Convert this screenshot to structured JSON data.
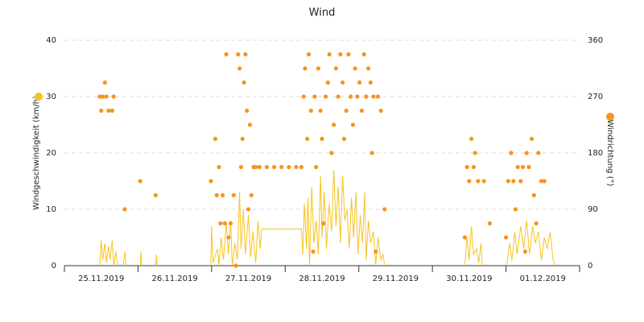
{
  "chart_data": {
    "type": "line",
    "title": "Wind",
    "xlim": [
      0,
      7
    ],
    "xticks": [
      {
        "value": 0.5,
        "label": "25.11.2019"
      },
      {
        "value": 1.5,
        "label": "26.11.2019"
      },
      {
        "value": 2.5,
        "label": "27.11.2019"
      },
      {
        "value": 3.5,
        "label": "28.11.2019"
      },
      {
        "value": 4.5,
        "label": "29.11.2019"
      },
      {
        "value": 5.5,
        "label": "30.11.2019"
      },
      {
        "value": 6.5,
        "label": "01.12.2019"
      }
    ],
    "ylim": [
      0,
      40
    ],
    "yticks": [
      0,
      10,
      20,
      30,
      40
    ],
    "y2lim": [
      0,
      360
    ],
    "y2ticks": [
      0,
      90,
      180,
      270,
      360
    ],
    "grid": true,
    "series": [
      {
        "name": "Windgeschwindigkeit (km/h)",
        "type": "line",
        "color": "#f9c31f",
        "x": [
          0.48,
          0.5,
          0.52,
          0.55,
          0.57,
          0.6,
          0.62,
          0.65,
          0.67,
          0.7,
          0.72,
          0.76,
          0.8,
          0.82,
          0.84,
          0.9,
          1.03,
          1.04,
          1.05,
          1.1,
          1.24,
          1.25,
          1.26,
          1.6,
          1.99,
          2.0,
          2.02,
          2.08,
          2.1,
          2.13,
          2.16,
          2.2,
          2.23,
          2.26,
          2.28,
          2.32,
          2.35,
          2.38,
          2.4,
          2.43,
          2.46,
          2.5,
          2.53,
          2.56,
          2.6,
          2.63,
          2.66,
          2.68,
          3.22,
          3.24,
          3.26,
          3.29,
          3.31,
          3.33,
          3.36,
          3.39,
          3.42,
          3.45,
          3.48,
          3.5,
          3.53,
          3.56,
          3.6,
          3.63,
          3.66,
          3.69,
          3.72,
          3.75,
          3.78,
          3.81,
          3.84,
          3.87,
          3.9,
          3.93,
          3.96,
          3.99,
          4.02,
          4.05,
          4.08,
          4.1,
          4.13,
          4.16,
          4.2,
          4.23,
          4.26,
          4.3,
          4.33,
          4.35,
          5.0,
          5.44,
          5.47,
          5.5,
          5.53,
          5.56,
          5.6,
          5.63,
          5.66,
          5.68,
          5.85,
          6.01,
          6.05,
          6.08,
          6.12,
          6.15,
          6.2,
          6.24,
          6.28,
          6.32,
          6.36,
          6.4,
          6.44,
          6.48,
          6.52,
          6.56,
          6.6,
          6.64,
          6.67
        ],
        "values": [
          0,
          4.5,
          1,
          4,
          0.5,
          3.5,
          1,
          4.5,
          0,
          2.5,
          0,
          null,
          0,
          2.5,
          0,
          null,
          0,
          2.5,
          0,
          null,
          0,
          2,
          0,
          null,
          0,
          7,
          0.5,
          3,
          0,
          5,
          1,
          7.5,
          2,
          8,
          0,
          4,
          1,
          13,
          3,
          10,
          2,
          9,
          1.5,
          6,
          0.5,
          8,
          3,
          6.5,
          6.5,
          2,
          11,
          3,
          12,
          0,
          14,
          4,
          8,
          2,
          16,
          5,
          13,
          3,
          11,
          6,
          17,
          7,
          14,
          4,
          16,
          8,
          10,
          3,
          12,
          5,
          13,
          2,
          9,
          4,
          13,
          1,
          8,
          4,
          6,
          0,
          5,
          1,
          2,
          0,
          null,
          0,
          5,
          1,
          7,
          2,
          3,
          0.5,
          4,
          0,
          null,
          0,
          4,
          1,
          6,
          2,
          7,
          3,
          8,
          2,
          7,
          4,
          6,
          1,
          5,
          3,
          6,
          1,
          0
        ]
      },
      {
        "name": "Windrichtung (°)",
        "type": "scatter",
        "axis": "y2",
        "color": "#f7941d",
        "x": [
          0.48,
          0.5,
          0.52,
          0.55,
          0.57,
          0.6,
          0.65,
          0.67,
          0.82,
          1.03,
          1.24,
          1.99,
          2.05,
          2.07,
          2.1,
          2.12,
          2.15,
          2.18,
          2.2,
          2.23,
          2.26,
          2.3,
          2.33,
          2.36,
          2.38,
          2.4,
          2.42,
          2.44,
          2.46,
          2.48,
          2.5,
          2.52,
          2.54,
          2.57,
          2.6,
          2.65,
          2.75,
          2.85,
          2.95,
          3.05,
          3.15,
          3.22,
          3.25,
          3.27,
          3.3,
          3.32,
          3.35,
          3.38,
          3.4,
          3.42,
          3.45,
          3.48,
          3.5,
          3.52,
          3.55,
          3.58,
          3.6,
          3.63,
          3.66,
          3.69,
          3.72,
          3.75,
          3.78,
          3.8,
          3.83,
          3.86,
          3.89,
          3.92,
          3.95,
          3.98,
          4.01,
          4.04,
          4.07,
          4.1,
          4.13,
          4.16,
          4.18,
          4.2,
          4.23,
          4.26,
          4.3,
          4.35,
          5.44,
          5.47,
          5.5,
          5.53,
          5.56,
          5.58,
          5.62,
          5.7,
          5.78,
          6.0,
          6.03,
          6.07,
          6.1,
          6.13,
          6.16,
          6.2,
          6.23,
          6.26,
          6.28,
          6.31,
          6.35,
          6.38,
          6.41,
          6.44,
          6.48,
          6.52
        ],
        "values": [
          270,
          247.5,
          270,
          292.5,
          270,
          247.5,
          247.5,
          270,
          90,
          135,
          112.5,
          135,
          202.5,
          112.5,
          157.5,
          67.5,
          112.5,
          67.5,
          337.5,
          45,
          67.5,
          112.5,
          0,
          337.5,
          315,
          157.5,
          202.5,
          292.5,
          337.5,
          247.5,
          90,
          225,
          112.5,
          157.5,
          157.5,
          157.5,
          157.5,
          157.5,
          157.5,
          157.5,
          157.5,
          157.5,
          270,
          315,
          202.5,
          337.5,
          247.5,
          22.5,
          270,
          157.5,
          315,
          247.5,
          202.5,
          67.5,
          270,
          292.5,
          337.5,
          180,
          225,
          315,
          270,
          337.5,
          292.5,
          202.5,
          247.5,
          337.5,
          270,
          225,
          315,
          270,
          292.5,
          247.5,
          337.5,
          270,
          315,
          292.5,
          180,
          270,
          22.5,
          270,
          247.5,
          90,
          45,
          157.5,
          135,
          202.5,
          157.5,
          180,
          135,
          135,
          67.5,
          45,
          135,
          180,
          135,
          90,
          157.5,
          135,
          157.5,
          22.5,
          180,
          157.5,
          202.5,
          112.5,
          67.5,
          180,
          135,
          135
        ]
      }
    ]
  }
}
